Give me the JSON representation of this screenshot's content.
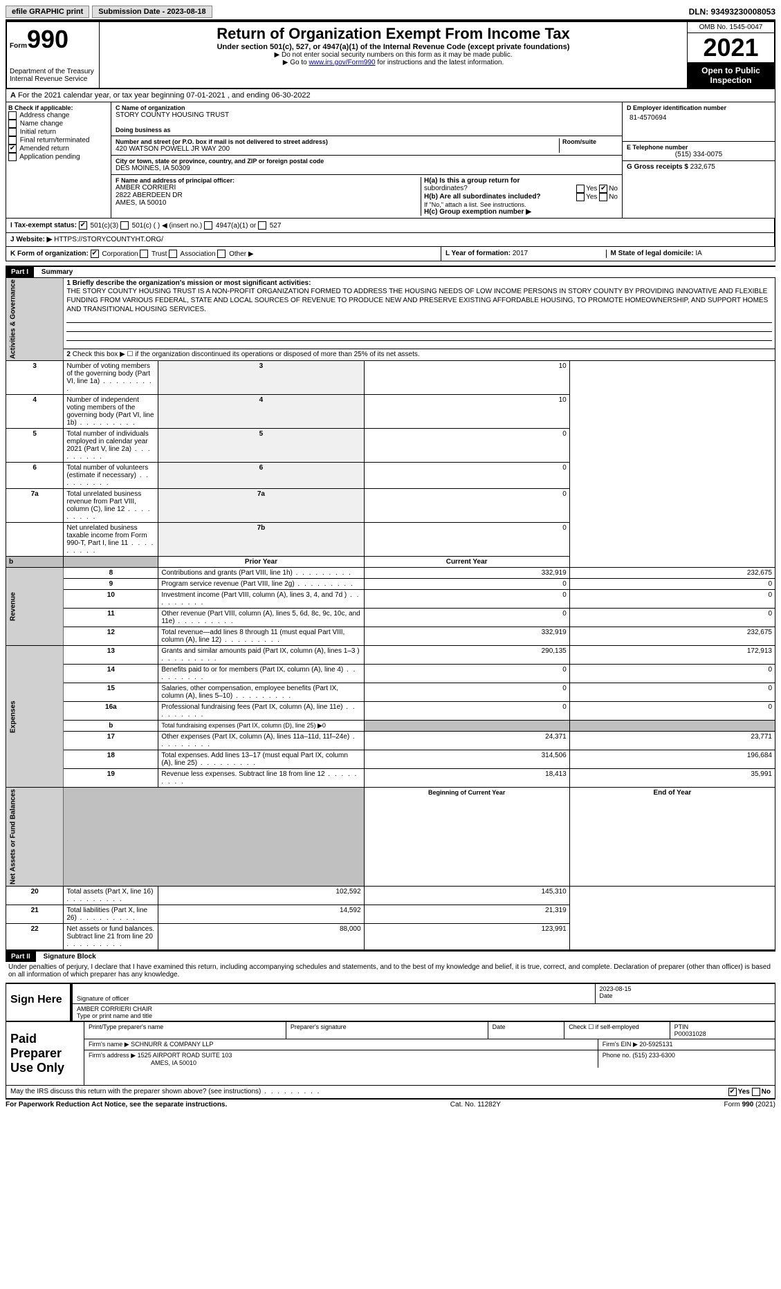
{
  "top": {
    "efile": "efile GRAPHIC print",
    "submission": "Submission Date - 2023-08-18",
    "dln": "DLN: 93493230008053"
  },
  "header": {
    "form_prefix": "Form",
    "form_number": "990",
    "dept": "Department of the Treasury",
    "irs": "Internal Revenue Service",
    "title": "Return of Organization Exempt From Income Tax",
    "subtitle": "Under section 501(c), 527, or 4947(a)(1) of the Internal Revenue Code (except private foundations)",
    "notice1": "▶ Do not enter social security numbers on this form as it may be made public.",
    "notice2_pre": "▶ Go to ",
    "notice2_link": "www.irs.gov/Form990",
    "notice2_post": " for instructions and the latest information.",
    "omb": "OMB No. 1545-0047",
    "year": "2021",
    "inspection": "Open to Public Inspection"
  },
  "row_a": "For the 2021 calendar year, or tax year beginning 07-01-2021    , and ending 06-30-2022",
  "box_b": {
    "label": "B Check if applicable:",
    "items": [
      "Address change",
      "Name change",
      "Initial return",
      "Final return/terminated",
      "Amended return",
      "Application pending"
    ],
    "checked": [
      false,
      false,
      false,
      false,
      true,
      false
    ]
  },
  "box_c": {
    "name_label": "C Name of organization",
    "name": "STORY COUNTY HOUSING TRUST",
    "dba_label": "Doing business as",
    "dba": "",
    "addr_label": "Number and street (or P.O. box if mail is not delivered to street address)",
    "addr": "420 WATSON POWELL JR WAY 200",
    "room_label": "Room/suite",
    "city_label": "City or town, state or province, country, and ZIP or foreign postal code",
    "city": "DES MOINES, IA  50309"
  },
  "box_d": {
    "label": "D Employer identification number",
    "value": "81-4570694"
  },
  "box_e": {
    "label": "E Telephone number",
    "value": "(515) 334-0075"
  },
  "box_g": {
    "label": "G Gross receipts $",
    "value": "232,675"
  },
  "box_f": {
    "label": "F  Name and address of principal officer:",
    "name": "AMBER CORRIERI",
    "addr1": "2822 ABERDEEN DR",
    "addr2": "AMES, IA  50010"
  },
  "box_h": {
    "ha": "H(a)  Is this a group return for",
    "ha2": "subordinates?",
    "hb": "H(b)  Are all subordinates included?",
    "hb_note": "If \"No,\" attach a list. See instructions.",
    "hc": "H(c)  Group exemption number ▶",
    "yes": "Yes",
    "no": "No"
  },
  "row_i": {
    "label": "I  Tax-exempt status:",
    "opts": [
      "501(c)(3)",
      "501(c) (  ) ◀ (insert no.)",
      "4947(a)(1) or",
      "527"
    ]
  },
  "row_j": {
    "label": "J  Website: ▶",
    "value": "HTTPS://STORYCOUNTYHT.ORG/"
  },
  "row_k": {
    "label": "K Form of organization:",
    "opts": [
      "Corporation",
      "Trust",
      "Association",
      "Other ▶"
    ]
  },
  "row_l": {
    "label": "L Year of formation:",
    "value": "2017"
  },
  "row_m": {
    "label": "M State of legal domicile:",
    "value": "IA"
  },
  "part1": {
    "header": "Part I",
    "title": "Summary",
    "line1_label": "1  Briefly describe the organization's mission or most significant activities:",
    "mission": "THE STORY COUNTY HOUSING TRUST IS A NON-PROFIT ORGANIZATION FORMED TO ADDRESS THE HOUSING NEEDS OF LOW INCOME PERSONS IN STORY COUNTY BY PROVIDING INNOVATIVE AND FLEXIBLE FUNDING FROM VARIOUS FEDERAL, STATE AND LOCAL SOURCES OF REVENUE TO PRODUCE NEW AND PRESERVE EXISTING AFFORDABLE HOUSING, TO PROMOTE HOMEOWNERSHIP, AND SUPPORT HOMES AND TRANSITIONAL HOUSING SERVICES.",
    "line2": "Check this box ▶ ☐  if the organization discontinued its operations or disposed of more than 25% of its net assets.",
    "lines": [
      {
        "n": "3",
        "t": "Number of voting members of the governing body (Part VI, line 1a)",
        "k": "3",
        "v": "10"
      },
      {
        "n": "4",
        "t": "Number of independent voting members of the governing body (Part VI, line 1b)",
        "k": "4",
        "v": "10"
      },
      {
        "n": "5",
        "t": "Total number of individuals employed in calendar year 2021 (Part V, line 2a)",
        "k": "5",
        "v": "0"
      },
      {
        "n": "6",
        "t": "Total number of volunteers (estimate if necessary)",
        "k": "6",
        "v": "0"
      },
      {
        "n": "7a",
        "t": "Total unrelated business revenue from Part VIII, column (C), line 12",
        "k": "7a",
        "v": "0"
      },
      {
        "n": "",
        "t": "Net unrelated business taxable income from Form 990-T, Part I, line 11",
        "k": "7b",
        "v": "0"
      }
    ],
    "prior_label": "Prior Year",
    "current_label": "Current Year",
    "revenue": [
      {
        "n": "8",
        "t": "Contributions and grants (Part VIII, line 1h)",
        "p": "332,919",
        "c": "232,675"
      },
      {
        "n": "9",
        "t": "Program service revenue (Part VIII, line 2g)",
        "p": "0",
        "c": "0"
      },
      {
        "n": "10",
        "t": "Investment income (Part VIII, column (A), lines 3, 4, and 7d )",
        "p": "0",
        "c": "0"
      },
      {
        "n": "11",
        "t": "Other revenue (Part VIII, column (A), lines 5, 6d, 8c, 9c, 10c, and 11e)",
        "p": "0",
        "c": "0"
      },
      {
        "n": "12",
        "t": "Total revenue—add lines 8 through 11 (must equal Part VIII, column (A), line 12)",
        "p": "332,919",
        "c": "232,675"
      }
    ],
    "expenses": [
      {
        "n": "13",
        "t": "Grants and similar amounts paid (Part IX, column (A), lines 1–3 )",
        "p": "290,135",
        "c": "172,913"
      },
      {
        "n": "14",
        "t": "Benefits paid to or for members (Part IX, column (A), line 4)",
        "p": "0",
        "c": "0"
      },
      {
        "n": "15",
        "t": "Salaries, other compensation, employee benefits (Part IX, column (A), lines 5–10)",
        "p": "0",
        "c": "0"
      },
      {
        "n": "16a",
        "t": "Professional fundraising fees (Part IX, column (A), line 11e)",
        "p": "0",
        "c": "0"
      },
      {
        "n": "b",
        "t": "Total fundraising expenses (Part IX, column (D), line 25) ▶0",
        "p": "",
        "c": "",
        "shaded": true
      },
      {
        "n": "17",
        "t": "Other expenses (Part IX, column (A), lines 11a–11d, 11f–24e)",
        "p": "24,371",
        "c": "23,771"
      },
      {
        "n": "18",
        "t": "Total expenses. Add lines 13–17 (must equal Part IX, column (A), line 25)",
        "p": "314,506",
        "c": "196,684"
      },
      {
        "n": "19",
        "t": "Revenue less expenses. Subtract line 18 from line 12",
        "p": "18,413",
        "c": "35,991"
      }
    ],
    "begin_label": "Beginning of Current Year",
    "end_label": "End of Year",
    "balances": [
      {
        "n": "20",
        "t": "Total assets (Part X, line 16)",
        "p": "102,592",
        "c": "145,310"
      },
      {
        "n": "21",
        "t": "Total liabilities (Part X, line 26)",
        "p": "14,592",
        "c": "21,319"
      },
      {
        "n": "22",
        "t": "Net assets or fund balances. Subtract line 21 from line 20",
        "p": "88,000",
        "c": "123,991"
      }
    ]
  },
  "part2": {
    "header": "Part II",
    "title": "Signature Block",
    "declaration": "Under penalties of perjury, I declare that I have examined this return, including accompanying schedules and statements, and to the best of my knowledge and belief, it is true, correct, and complete. Declaration of preparer (other than officer) is based on all information of which preparer has any knowledge.",
    "sign_here": "Sign Here",
    "sig_officer": "Signature of officer",
    "sig_date": "2023-08-15",
    "date_label": "Date",
    "officer_name": "AMBER CORRIERI CHAIR",
    "type_name": "Type or print name and title",
    "paid_label": "Paid Preparer Use Only",
    "prep_name_label": "Print/Type preparer's name",
    "prep_sig_label": "Preparer's signature",
    "check_self": "Check ☐ if self-employed",
    "ptin_label": "PTIN",
    "ptin": "P00031028",
    "firm_name_label": "Firm's name      ▶",
    "firm_name": "SCHNURR & COMPANY LLP",
    "firm_ein_label": "Firm's EIN ▶",
    "firm_ein": "20-5925131",
    "firm_addr_label": "Firm's address ▶",
    "firm_addr1": "1525 AIRPORT ROAD SUITE 103",
    "firm_addr2": "AMES, IA  50010",
    "phone_label": "Phone no.",
    "phone": "(515) 233-6300",
    "may_irs": "May the IRS discuss this return with the preparer shown above? (see instructions)"
  },
  "footer": {
    "left": "For Paperwork Reduction Act Notice, see the separate instructions.",
    "center": "Cat. No. 11282Y",
    "right": "Form 990 (2021)"
  },
  "vert": {
    "gov": "Activities & Governance",
    "rev": "Revenue",
    "exp": "Expenses",
    "bal": "Net Assets or Fund Balances"
  }
}
